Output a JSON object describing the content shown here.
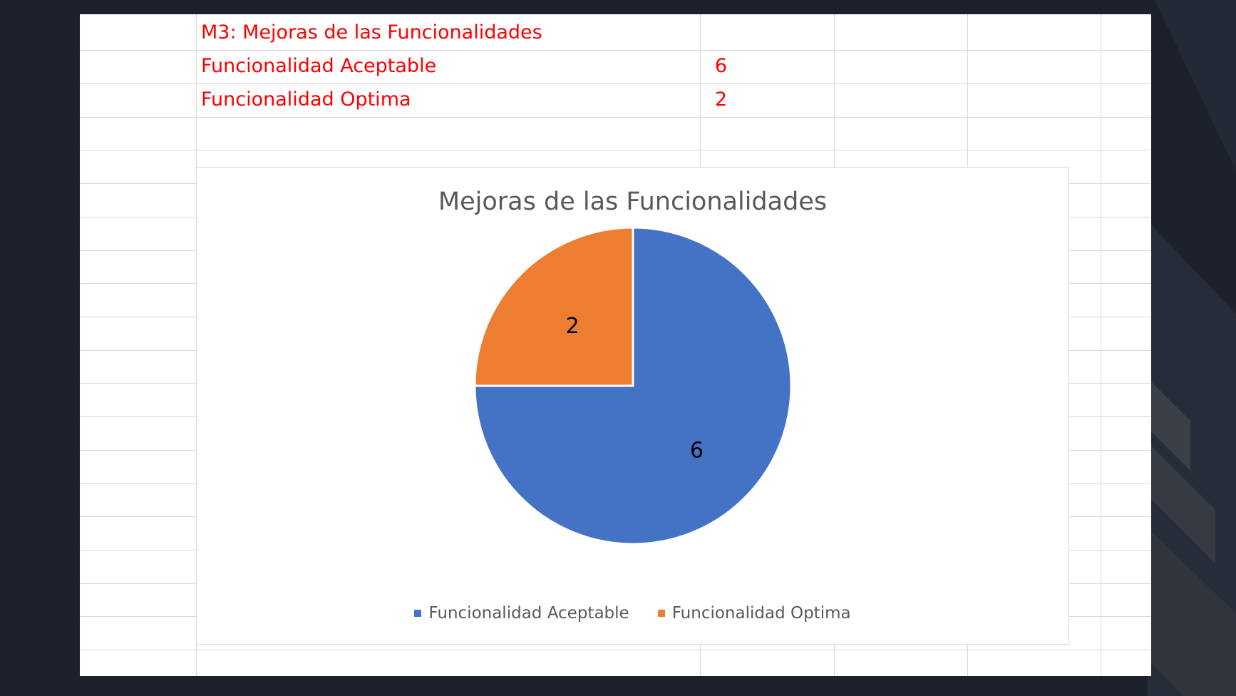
{
  "colors": {
    "background": "#1c212b",
    "cell_text": "#ff0000",
    "slice_1": "#4472c4",
    "slice_2": "#ed7d31",
    "gridline": "#d9d9d9"
  },
  "sheet": {
    "rows": [
      {
        "label": "M3: Mejoras de las Funcionalidades",
        "value": ""
      },
      {
        "label": "Funcionalidad Aceptable",
        "value": "6"
      },
      {
        "label": "Funcionalidad Optima",
        "value": "2"
      }
    ]
  },
  "chart_data": {
    "type": "pie",
    "title": "Mejoras de las Funcionalidades",
    "categories": [
      "Funcionalidad Aceptable",
      "Funcionalidad Optima"
    ],
    "values": [
      6,
      2
    ],
    "data_labels": [
      "6",
      "2"
    ],
    "colors": [
      "#4472c4",
      "#ed7d31"
    ],
    "legend_position": "bottom"
  }
}
